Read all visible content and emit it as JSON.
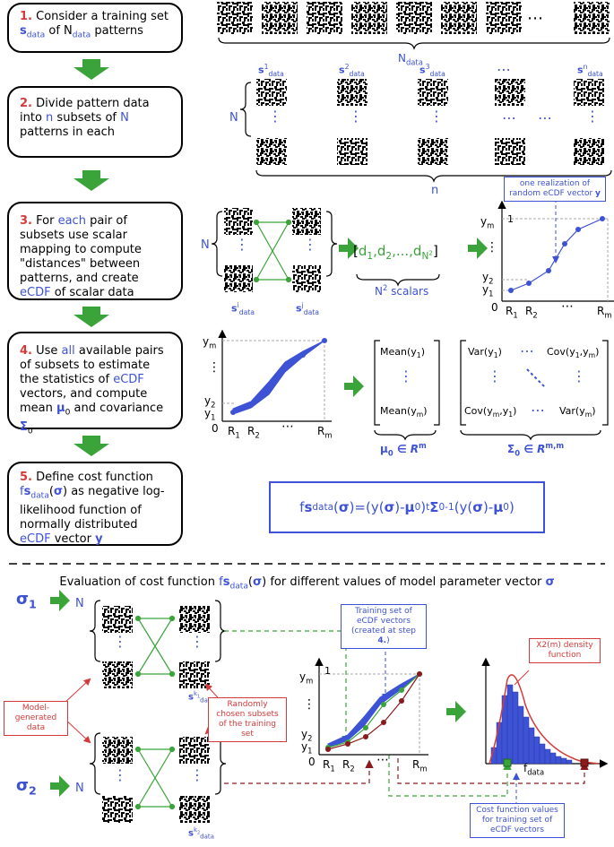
{
  "steps": [
    {
      "num": "1.",
      "text": "Consider a training set s_data of N_data patterns"
    },
    {
      "num": "2.",
      "text": "Divide pattern data into n subsets of N patterns in each"
    },
    {
      "num": "3.",
      "text": "For each pair of subsets use scalar mapping to compute \"distances\" between patterns, and create eCDF of scalar data"
    },
    {
      "num": "4.",
      "text": "Use all available pairs of subsets to estimate the statistics of eCDF vectors, and compute mean μ0 and covariance Σ0"
    },
    {
      "num": "5.",
      "text": "Define cost function fs_data(σ) as negative log-likelihood function of normally distributed eCDF vector y"
    }
  ],
  "labels": {
    "ndata": "N",
    "N": "N",
    "n": "n",
    "dots": "⋯",
    "vdots": "⋮",
    "scalars": "N",
    "scalars_suffix": " scalars",
    "d_vector": "[d",
    "realization_note": "one realization of random eCDF vector y",
    "mean_top": "Mean(y",
    "mean_bottom": "Mean(y",
    "var1": "Var(y",
    "cov1m": "Cov(y",
    "covm1": "Cov(y",
    "varm": "Var(y",
    "mu_caption": "μ",
    "sigma_caption": "Σ",
    "eval_title": "Evaluation of cost function fs_data(σ) for different values of model parameter vector σ",
    "sigma1": "σ",
    "sigma2": "σ",
    "model_generated": "Model-generated data",
    "random_subsets": "Randomly chosen subsets of the training set",
    "training_set_note": "Training set of eCDF vectors (created at step 4.)",
    "chi2": "X2(m) density function",
    "cost_values": "Cost function values for training set of eCDF vectors",
    "fdata": "f",
    "R1": "R",
    "R2": "R",
    "Rm": "R",
    "y1": "y",
    "y2": "y",
    "ym": "y",
    "one": "1",
    "zero": "0"
  },
  "colors": {
    "accent": "#3d52d5",
    "step_num": "#d53a3a",
    "green": "#3aa43a",
    "dark_red": "#8b1a1a"
  }
}
